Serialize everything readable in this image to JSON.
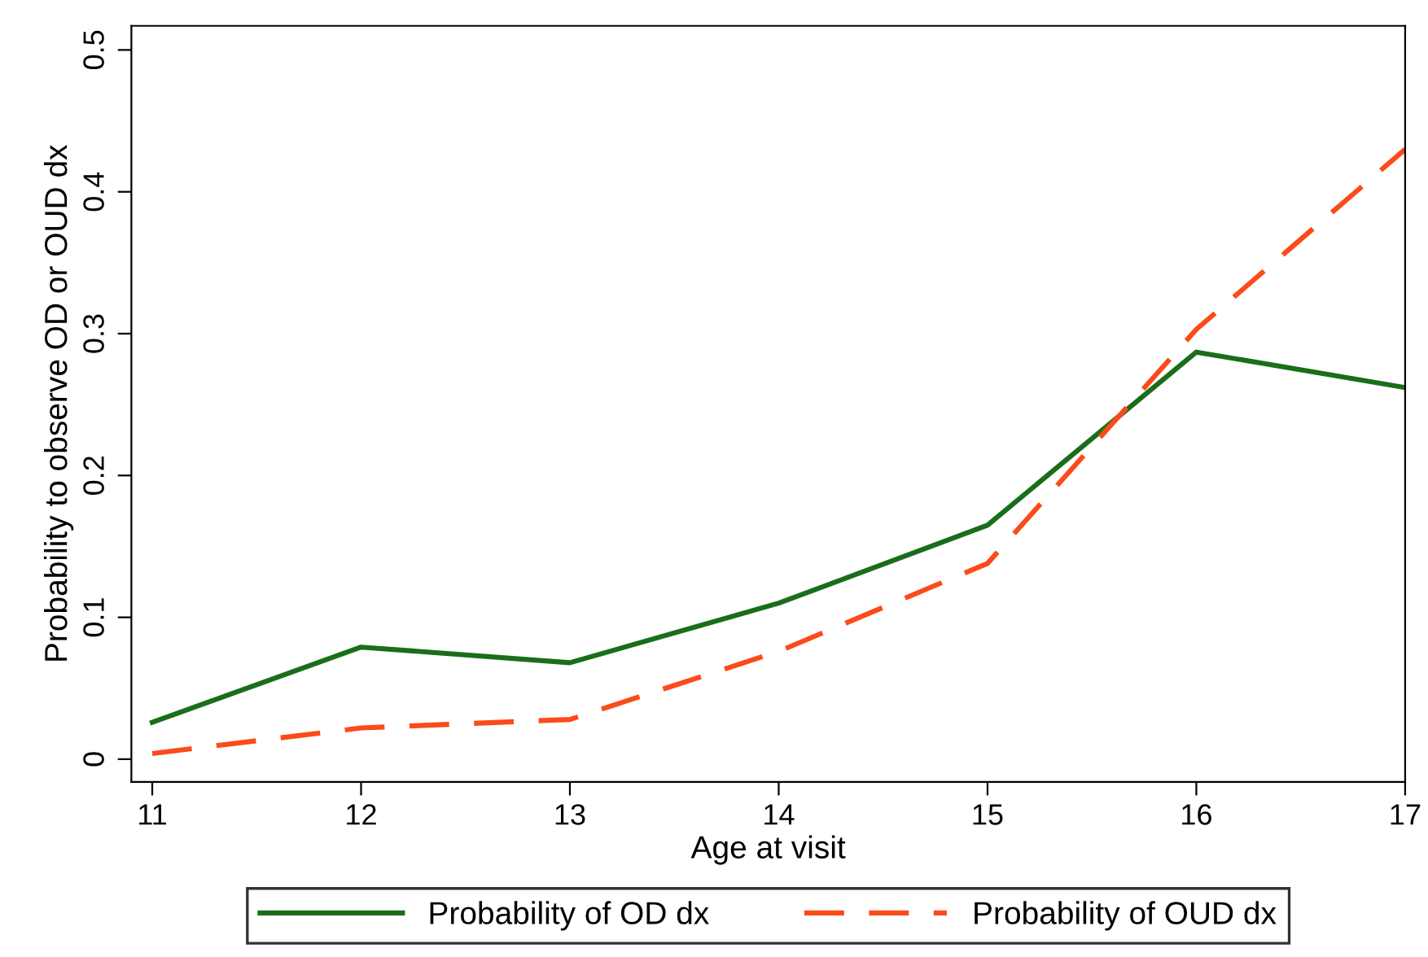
{
  "chart_data": {
    "type": "line",
    "xlabel": "Age at visit",
    "ylabel": "Probability to observe OD or OUD dx",
    "x": [
      11,
      12,
      13,
      14,
      15,
      16,
      17
    ],
    "series": [
      {
        "name": "Probability of OD dx",
        "color": "#1a6e1a",
        "line_style": "solid",
        "values": [
          0.026,
          0.079,
          0.068,
          0.11,
          0.165,
          0.287,
          0.262
        ]
      },
      {
        "name": "Probability of OUD dx",
        "color": "#fc4a1a",
        "line_style": "dashed",
        "values": [
          0.004,
          0.022,
          0.028,
          0.076,
          0.138,
          0.303,
          0.43
        ]
      }
    ],
    "xlim": [
      10.9,
      17.0
    ],
    "ylim": [
      -0.016,
      0.517
    ],
    "xticks": [
      11,
      12,
      13,
      14,
      15,
      16,
      17
    ],
    "yticks": [
      0,
      0.1,
      0.2,
      0.3,
      0.4,
      0.5
    ],
    "grid": false,
    "legend": "bottom",
    "marker": "none"
  }
}
